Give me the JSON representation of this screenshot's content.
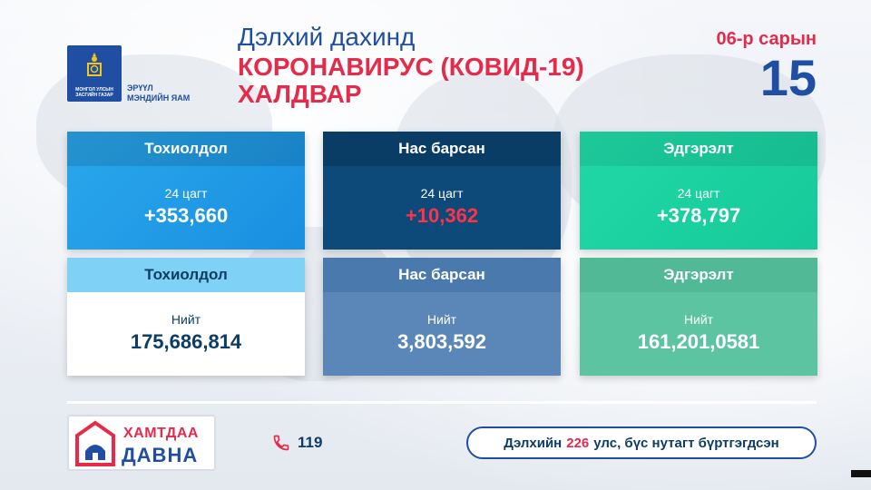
{
  "header": {
    "logo_text": "МОНГОЛ УЛСЫН ЗАСГИЙН ГАЗАР",
    "ministry": "ЭРҮҮЛ\nМЭНДИЙН ЯАМ",
    "title_line1": "Дэлхий дахинд",
    "title_line2": "КОРОНАВИРУС (КОВИД-19)",
    "title_line3": "ХАЛДВАР",
    "month": "06-р сарын",
    "day": "15"
  },
  "cards_daily": [
    {
      "label": "Тохиолдол",
      "sub": "24 цагт",
      "value": "+353,660"
    },
    {
      "label": "Нас барсан",
      "sub": "24 цагт",
      "value": "+10,362"
    },
    {
      "label": "Эдгэрэлт",
      "sub": "24 цагт",
      "value": "+378,797"
    }
  ],
  "cards_total": [
    {
      "label": "Тохиолдол",
      "sub": "Нийт",
      "value": "175,686,814"
    },
    {
      "label": "Нас барсан",
      "sub": "Нийт",
      "value": "3,803,592"
    },
    {
      "label": "Эдгэрэлт",
      "sub": "Нийт",
      "value": "161,201,0581"
    }
  ],
  "footer": {
    "brand_line1": "ХАМТДАА",
    "brand_line2": "ДАВНА",
    "phone_icon": "phone-icon",
    "phone": "119",
    "pill_prefix": "Дэлхийн",
    "pill_count": "226",
    "pill_suffix": "улс, бүс нутагт бүртгэгдсэн"
  },
  "colors": {
    "brand_blue": "#1f4ea2",
    "accent_red": "#e52a4a",
    "daily_cases": "#1a8fe0",
    "daily_deaths": "#0d4a7a",
    "daily_recovered": "#17c99a"
  }
}
